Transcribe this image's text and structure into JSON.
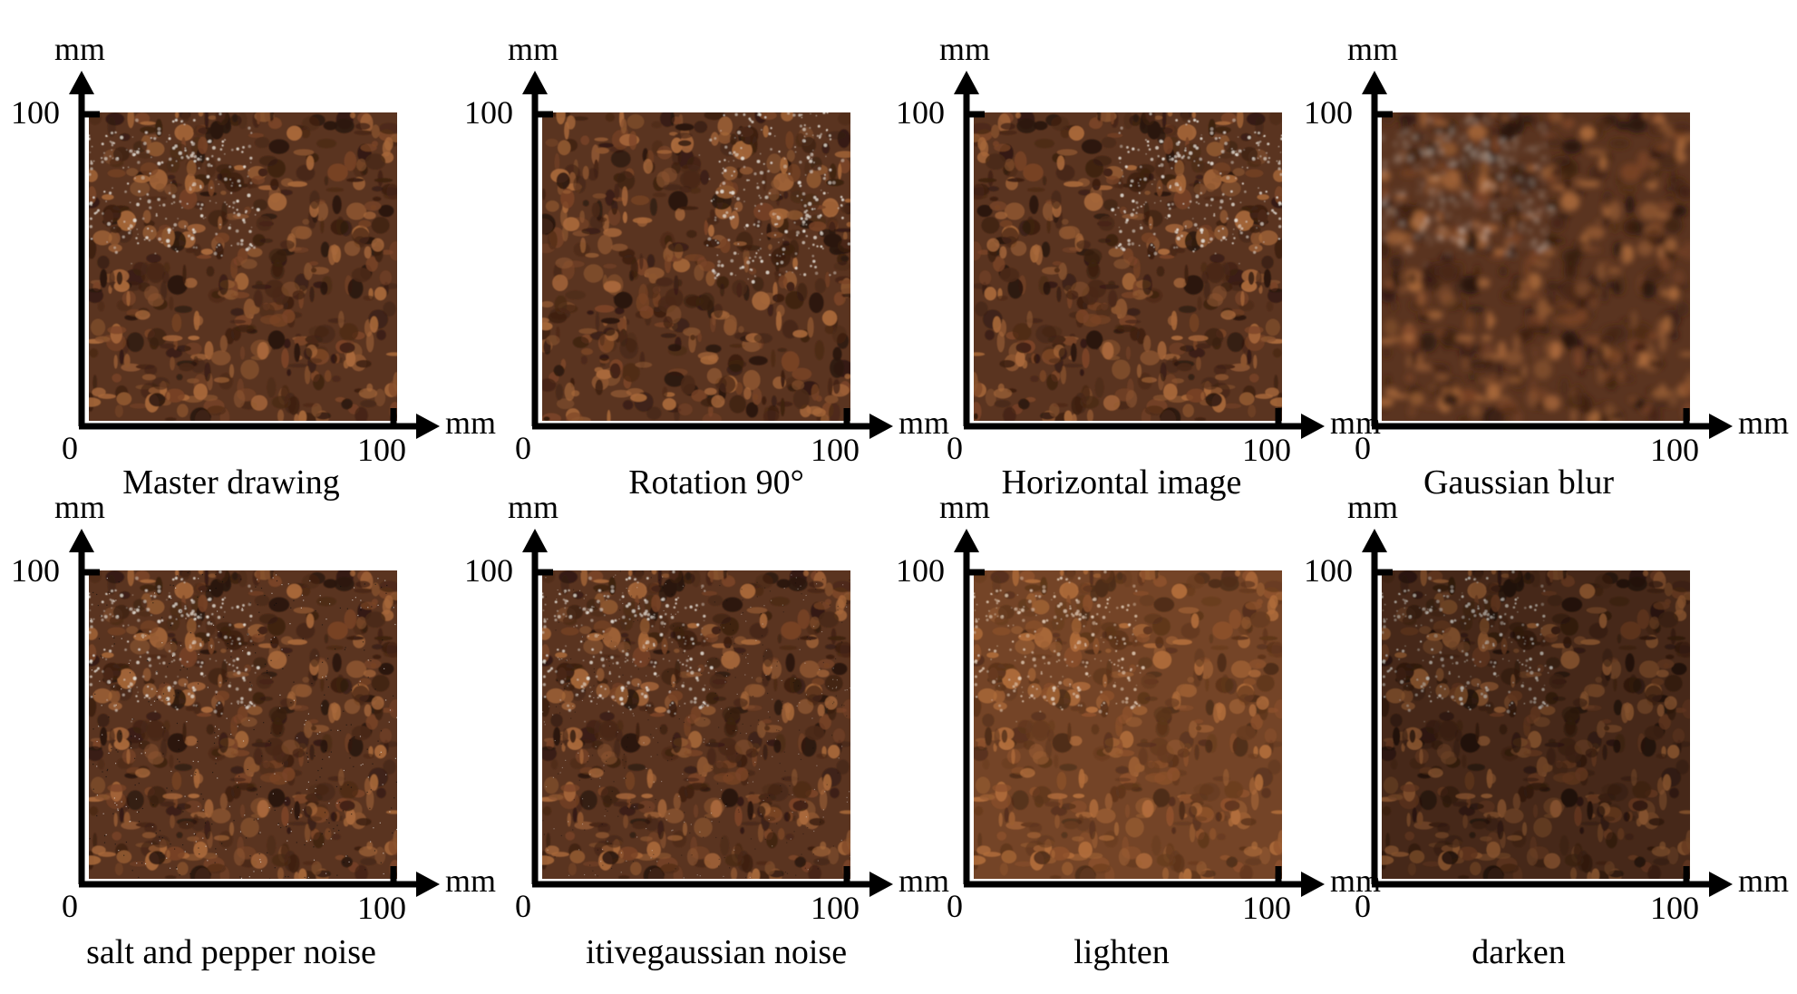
{
  "panels": [
    {
      "caption": "Master drawing",
      "y_unit": "mm",
      "x_unit": "mm",
      "y_max_label": "100",
      "x_max_label": "100",
      "origin_label": "0",
      "variant": "original"
    },
    {
      "caption": "Rotation 90°",
      "y_unit": "mm",
      "x_unit": "mm",
      "y_max_label": "100",
      "x_max_label": "100",
      "origin_label": "0",
      "variant": "rotate"
    },
    {
      "caption": "Horizontal image",
      "y_unit": "mm",
      "x_unit": "mm",
      "y_max_label": "100",
      "x_max_label": "100",
      "origin_label": "0",
      "variant": "flip"
    },
    {
      "caption": "Gaussian blur",
      "y_unit": "mm",
      "x_unit": "mm",
      "y_max_label": "100",
      "x_max_label": "100",
      "origin_label": "0",
      "variant": "blur"
    },
    {
      "caption": "salt and pepper noise",
      "y_unit": "mm",
      "x_unit": "mm",
      "y_max_label": "100",
      "x_max_label": "100",
      "origin_label": "0",
      "variant": "saltpepper"
    },
    {
      "caption": "itivegaussian noise",
      "y_unit": "mm",
      "x_unit": "mm",
      "y_max_label": "100",
      "x_max_label": "100",
      "origin_label": "0",
      "variant": "gaussnoise"
    },
    {
      "caption": "lighten",
      "y_unit": "mm",
      "x_unit": "mm",
      "y_max_label": "100",
      "x_max_label": "100",
      "origin_label": "0",
      "variant": "lighten"
    },
    {
      "caption": "darken",
      "y_unit": "mm",
      "x_unit": "mm",
      "y_max_label": "100",
      "x_max_label": "100",
      "origin_label": "0",
      "variant": "darken"
    }
  ],
  "colors": {
    "texture_base": "#5a3420",
    "texture_light": "#a8683a",
    "texture_dark": "#2a160c",
    "speckle": "#e8e4dc"
  }
}
